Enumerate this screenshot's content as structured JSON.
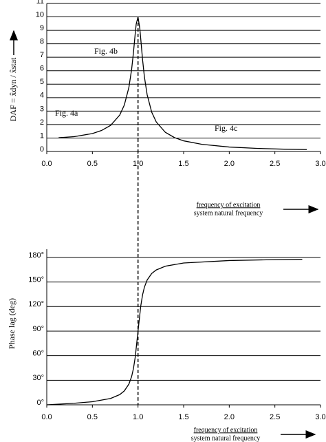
{
  "chart_data": [
    {
      "type": "line",
      "ylabel": "DAF = x̂dyn / x̂stat",
      "xlabel_top": "frequency of excitation",
      "xlabel_bottom": "system natural frequency",
      "annotations": [
        "Fig. 4a",
        "Fig. 4b",
        "Fig. 4c"
      ],
      "x": [
        0.13,
        0.3,
        0.5,
        0.6,
        0.7,
        0.8,
        0.85,
        0.9,
        0.93,
        0.95,
        0.97,
        0.98,
        1.0,
        1.02,
        1.03,
        1.05,
        1.07,
        1.1,
        1.15,
        1.2,
        1.3,
        1.4,
        1.5,
        1.7,
        2.0,
        2.3,
        2.6,
        2.85
      ],
      "series": [
        {
          "color": "#000000",
          "values": [
            1.02,
            1.1,
            1.33,
            1.56,
            1.94,
            2.71,
            3.45,
            4.76,
            6.1,
            7.35,
            8.8,
            9.46,
            10.0,
            9.12,
            8.36,
            6.82,
            5.55,
            4.22,
            2.92,
            2.19,
            1.42,
            1.03,
            0.79,
            0.53,
            0.33,
            0.23,
            0.17,
            0.14
          ]
        }
      ],
      "xlim": [
        0,
        3
      ],
      "ylim": [
        0,
        11
      ],
      "xticks": [
        {
          "value": 0,
          "label": "0.0"
        },
        {
          "value": 0.5,
          "label": "0.5"
        },
        {
          "value": 1,
          "label": "1.0"
        },
        {
          "value": 1.5,
          "label": "1.5"
        },
        {
          "value": 2,
          "label": "2.0"
        },
        {
          "value": 2.5,
          "label": "2.5"
        },
        {
          "value": 3,
          "label": "3.0"
        }
      ],
      "yticks": [
        0,
        1,
        2,
        3,
        4,
        5,
        6,
        7,
        8,
        9,
        10,
        11
      ],
      "grid": true
    },
    {
      "type": "line",
      "ylabel": "Phase lag (deg)",
      "xlabel_top": "frequency of excitation",
      "xlabel_bottom": "system natural frequency",
      "x": [
        0,
        0.3,
        0.5,
        0.7,
        0.8,
        0.85,
        0.9,
        0.93,
        0.95,
        0.97,
        1.0,
        1.03,
        1.05,
        1.07,
        1.1,
        1.15,
        1.2,
        1.3,
        1.5,
        2.0,
        2.5,
        2.8
      ],
      "series": [
        {
          "color": "#000000",
          "values": [
            0,
            1.9,
            3.8,
            7.8,
            12.5,
            17.0,
            25.3,
            34.5,
            44.3,
            58.6,
            90,
            120.6,
            134.3,
            143.6,
            152.4,
            160.4,
            164.7,
            169.3,
            173.2,
            176.2,
            177.3,
            177.7
          ]
        }
      ],
      "xlim": [
        0,
        3
      ],
      "ylim": [
        0,
        190
      ],
      "xticks": [
        {
          "value": 0,
          "label": "0.0"
        },
        {
          "value": 0.5,
          "label": "0.5"
        },
        {
          "value": 1,
          "label": "1.0"
        },
        {
          "value": 1.5,
          "label": "1.5"
        },
        {
          "value": 2,
          "label": "2.0"
        },
        {
          "value": 2.5,
          "label": "2.5"
        },
        {
          "value": 3,
          "label": "3.0"
        }
      ],
      "yticks": [
        {
          "value": 0,
          "label": "0°"
        },
        {
          "value": 30,
          "label": "30°"
        },
        {
          "value": 60,
          "label": "60°"
        },
        {
          "value": 90,
          "label": "90°"
        },
        {
          "value": 120,
          "label": "120°"
        },
        {
          "value": 150,
          "label": "150°"
        },
        {
          "value": 180,
          "label": "180°"
        }
      ],
      "grid": true
    }
  ]
}
